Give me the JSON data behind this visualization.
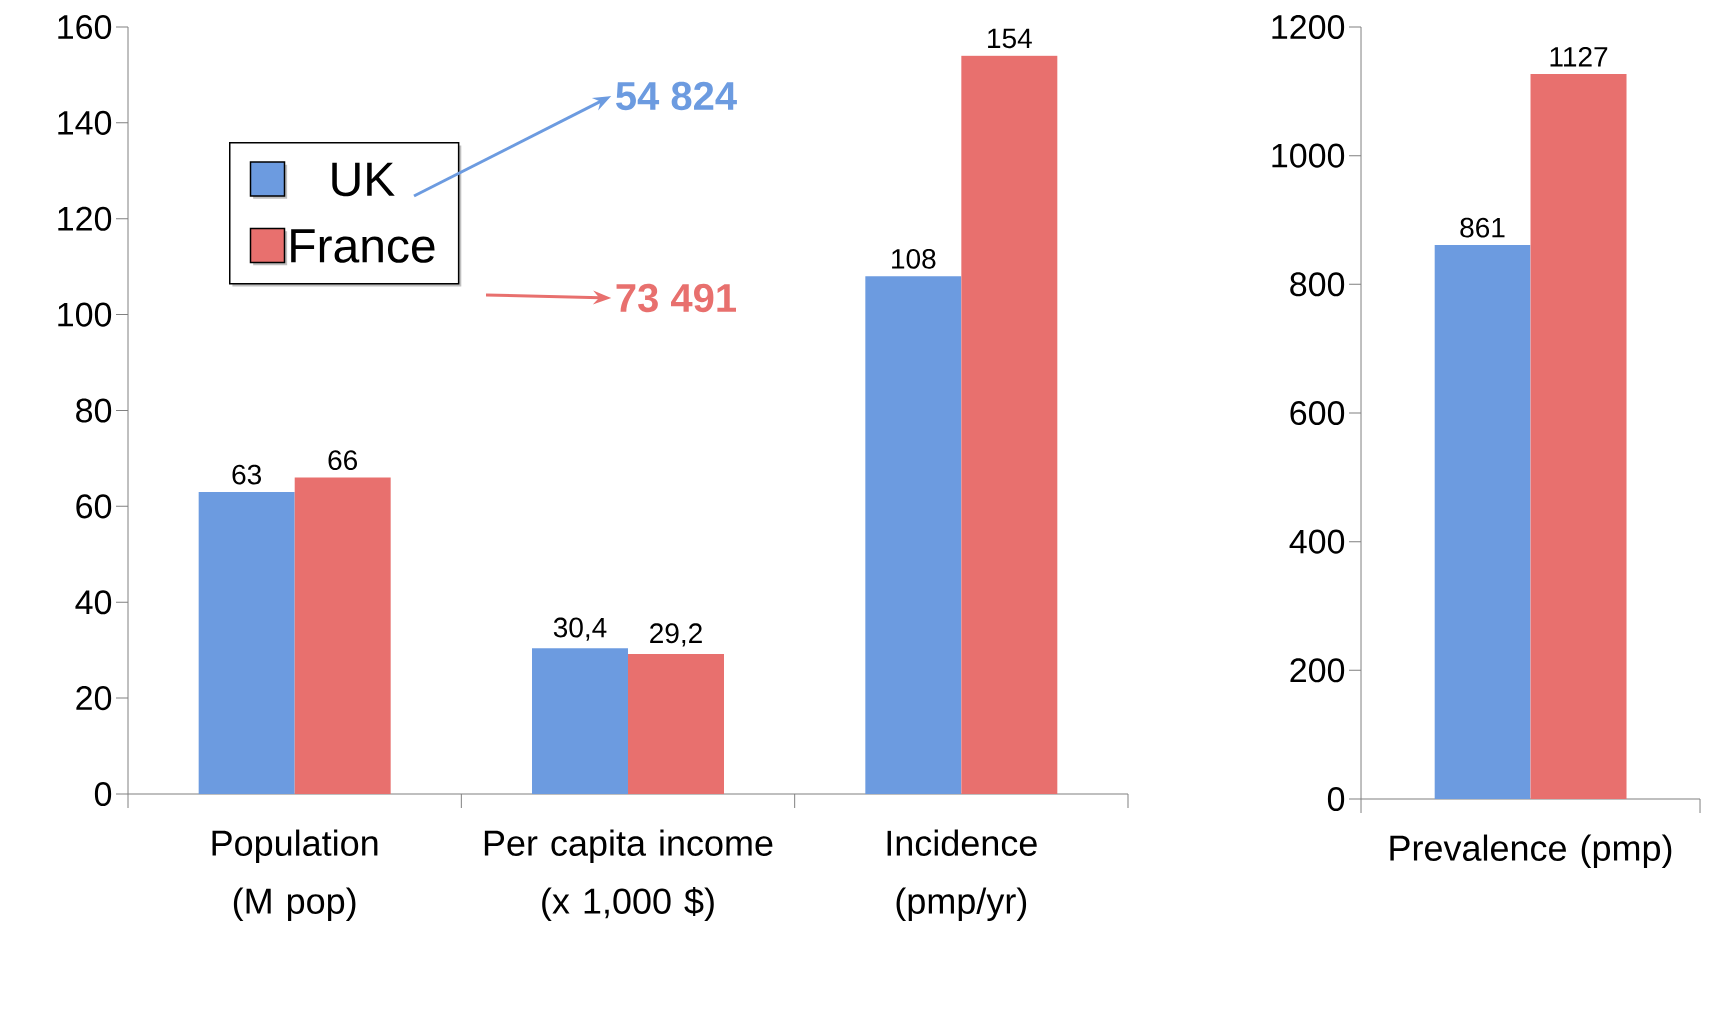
{
  "chart_data": [
    {
      "type": "bar",
      "categories": [
        "Population (M pop)",
        "Per capita income (x 1,000 $)",
        "Incidence (pmp/yr)"
      ],
      "series": [
        {
          "name": "UK",
          "color": "#6c9be0",
          "values": [
            63,
            30.4,
            108
          ],
          "value_labels": [
            "63",
            "30,4",
            "108"
          ]
        },
        {
          "name": "France",
          "color": "#e8706e",
          "values": [
            66,
            29.2,
            154
          ],
          "value_labels": [
            "66",
            "29,2",
            "154"
          ]
        }
      ],
      "ylim": [
        0,
        160
      ],
      "yticks": [
        0,
        20,
        40,
        60,
        80,
        100,
        120,
        140,
        160
      ],
      "grid": false,
      "legend": "top left",
      "annotations": [
        "54 824",
        "73 491"
      ]
    },
    {
      "type": "bar",
      "categories": [
        "Prevalence (pmp)"
      ],
      "series": [
        {
          "color": "#6c9be0",
          "values": [
            861
          ],
          "value_labels": [
            "861"
          ]
        },
        {
          "color": "#e8706e",
          "values": [
            1127
          ],
          "value_labels": [
            "1127"
          ]
        }
      ],
      "ylim": [
        0,
        1200
      ],
      "yticks": [
        0,
        200,
        400,
        600,
        800,
        1000,
        1200
      ],
      "grid": false,
      "legend": false
    }
  ]
}
